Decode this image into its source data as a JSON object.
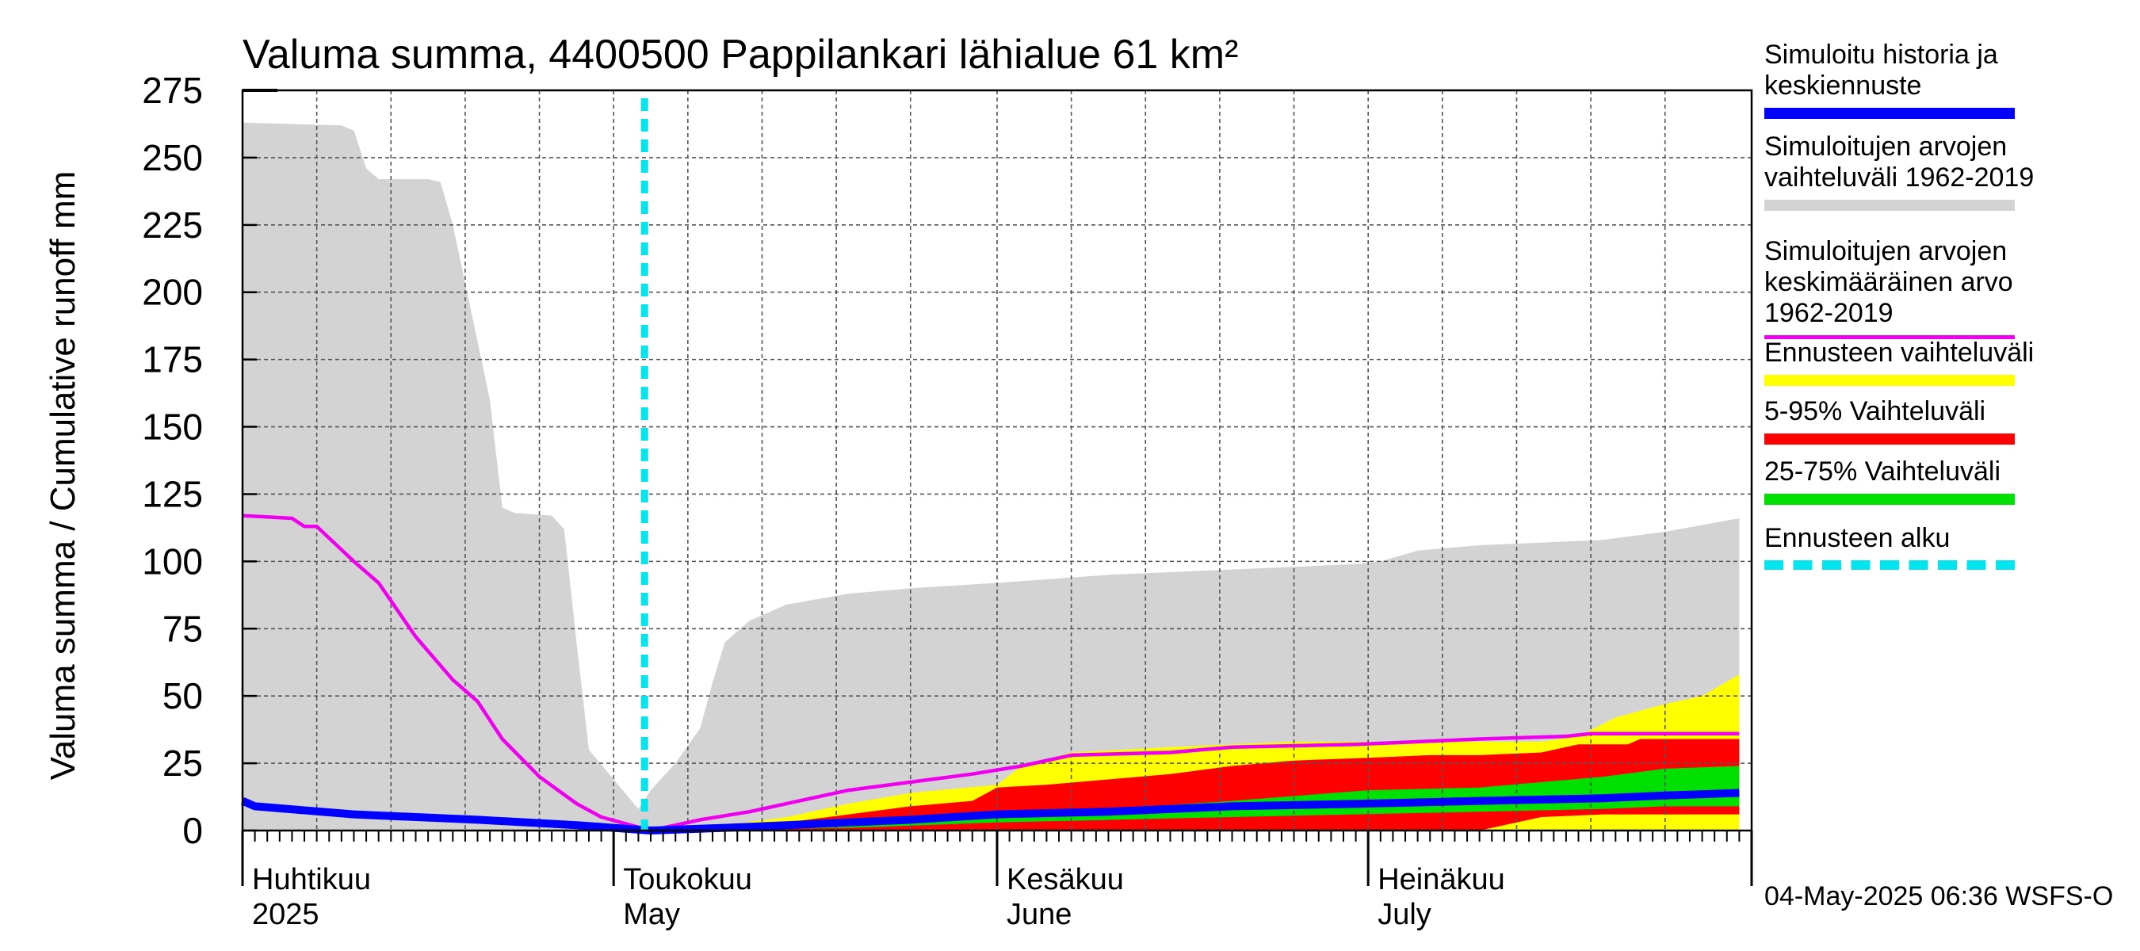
{
  "chart_data": {
    "type": "area",
    "title": "Valuma summa, 4400500 Pappilankari lähialue 61 km²",
    "ylabel": "Valuma summa / Cumulative runoff    mm",
    "ylim": [
      0,
      275
    ],
    "yticks": [
      0,
      25,
      50,
      75,
      100,
      125,
      150,
      175,
      200,
      225,
      250,
      275
    ],
    "xlim": [
      "2025-04-01",
      "2025-07-31"
    ],
    "grid": true,
    "month_labels": [
      {
        "date": "2025-04-01",
        "fi": "Huhtikuu",
        "en": "2025"
      },
      {
        "date": "2025-05-01",
        "fi": "Toukokuu",
        "en": "May"
      },
      {
        "date": "2025-06-01",
        "fi": "Kesäkuu",
        "en": "June"
      },
      {
        "date": "2025-07-01",
        "fi": "Heinäkuu",
        "en": "July"
      }
    ],
    "forecast_start": "2025-05-04",
    "series": [
      {
        "name": "Simuloitujen arvojen vaihteluväli 1962-2019",
        "kind": "band",
        "color": "#d3d3d3",
        "upper": [
          [
            "2025-04-01",
            263
          ],
          [
            "2025-04-09",
            262
          ],
          [
            "2025-04-10",
            260
          ],
          [
            "2025-04-11",
            246
          ],
          [
            "2025-04-12",
            242
          ],
          [
            "2025-04-16",
            242
          ],
          [
            "2025-04-17",
            241
          ],
          [
            "2025-04-18",
            225
          ],
          [
            "2025-04-21",
            160
          ],
          [
            "2025-04-22",
            120
          ],
          [
            "2025-04-23",
            118
          ],
          [
            "2025-04-26",
            117
          ],
          [
            "2025-04-27",
            112
          ],
          [
            "2025-04-28",
            70
          ],
          [
            "2025-04-29",
            30
          ],
          [
            "2025-05-03",
            8
          ],
          [
            "2025-05-04",
            15
          ],
          [
            "2025-05-06",
            25
          ],
          [
            "2025-05-08",
            38
          ],
          [
            "2025-05-09",
            55
          ],
          [
            "2025-05-10",
            70
          ],
          [
            "2025-05-12",
            78
          ],
          [
            "2025-05-15",
            84
          ],
          [
            "2025-05-20",
            88
          ],
          [
            "2025-05-25",
            90
          ],
          [
            "2025-06-01",
            92
          ],
          [
            "2025-06-10",
            95
          ],
          [
            "2025-06-20",
            97
          ],
          [
            "2025-06-30",
            99
          ],
          [
            "2025-07-02",
            100
          ],
          [
            "2025-07-05",
            104
          ],
          [
            "2025-07-10",
            106
          ],
          [
            "2025-07-15",
            107
          ],
          [
            "2025-07-20",
            108
          ],
          [
            "2025-07-25",
            111
          ],
          [
            "2025-07-31",
            116
          ]
        ],
        "lower": [
          [
            "2025-04-01",
            0
          ],
          [
            "2025-07-31",
            0
          ]
        ]
      },
      {
        "name": "Ennusteen vaihteluväli",
        "kind": "band",
        "color": "#ffff00",
        "upper": [
          [
            "2025-05-04",
            0
          ],
          [
            "2025-05-10",
            2
          ],
          [
            "2025-05-15",
            5
          ],
          [
            "2025-05-20",
            10
          ],
          [
            "2025-05-25",
            14
          ],
          [
            "2025-06-01",
            17
          ],
          [
            "2025-06-03",
            24
          ],
          [
            "2025-06-07",
            29
          ],
          [
            "2025-06-15",
            31
          ],
          [
            "2025-06-20",
            32
          ],
          [
            "2025-06-25",
            33
          ],
          [
            "2025-07-01",
            33
          ],
          [
            "2025-07-05",
            33
          ],
          [
            "2025-07-15",
            33
          ],
          [
            "2025-07-18",
            35
          ],
          [
            "2025-07-21",
            42
          ],
          [
            "2025-07-25",
            47
          ],
          [
            "2025-07-28",
            50
          ],
          [
            "2025-07-31",
            58
          ]
        ],
        "lower": [
          [
            "2025-05-04",
            0
          ],
          [
            "2025-07-31",
            0
          ]
        ]
      },
      {
        "name": "5-95% Vaihteluväli",
        "kind": "band",
        "color": "#ff0000",
        "upper": [
          [
            "2025-05-04",
            0
          ],
          [
            "2025-05-12",
            1
          ],
          [
            "2025-05-15",
            3
          ],
          [
            "2025-05-20",
            6
          ],
          [
            "2025-05-25",
            9
          ],
          [
            "2025-05-30",
            11
          ],
          [
            "2025-06-01",
            16
          ],
          [
            "2025-06-05",
            17
          ],
          [
            "2025-06-10",
            19
          ],
          [
            "2025-06-15",
            21
          ],
          [
            "2025-06-20",
            24
          ],
          [
            "2025-06-25",
            26
          ],
          [
            "2025-07-01",
            27
          ],
          [
            "2025-07-06",
            28
          ],
          [
            "2025-07-10",
            28
          ],
          [
            "2025-07-15",
            29
          ],
          [
            "2025-07-18",
            32
          ],
          [
            "2025-07-22",
            32
          ],
          [
            "2025-07-23",
            34
          ],
          [
            "2025-07-31",
            34
          ]
        ],
        "lower": [
          [
            "2025-05-04",
            0
          ],
          [
            "2025-07-10",
            0
          ],
          [
            "2025-07-15",
            5
          ],
          [
            "2025-07-20",
            6
          ],
          [
            "2025-07-31",
            6
          ]
        ]
      },
      {
        "name": "25-75% Vaihteluväli",
        "kind": "band",
        "color": "#00e000",
        "upper": [
          [
            "2025-05-04",
            0
          ],
          [
            "2025-05-15",
            2
          ],
          [
            "2025-05-25",
            4
          ],
          [
            "2025-06-01",
            6
          ],
          [
            "2025-06-10",
            8
          ],
          [
            "2025-06-20",
            11
          ],
          [
            "2025-07-01",
            15
          ],
          [
            "2025-07-10",
            16
          ],
          [
            "2025-07-15",
            18
          ],
          [
            "2025-07-20",
            20
          ],
          [
            "2025-07-25",
            23
          ],
          [
            "2025-07-31",
            24
          ]
        ],
        "lower": [
          [
            "2025-05-04",
            0
          ],
          [
            "2025-05-20",
            1
          ],
          [
            "2025-06-01",
            3
          ],
          [
            "2025-06-20",
            5
          ],
          [
            "2025-07-10",
            7
          ],
          [
            "2025-07-20",
            8
          ],
          [
            "2025-07-25",
            9
          ],
          [
            "2025-07-31",
            9
          ]
        ]
      },
      {
        "name": "Simuloitujen arvojen keskimääräinen arvo 1962-2019",
        "kind": "line",
        "color": "#ee00ee",
        "points": [
          [
            "2025-04-01",
            117
          ],
          [
            "2025-04-05",
            116
          ],
          [
            "2025-04-06",
            113
          ],
          [
            "2025-04-07",
            113
          ],
          [
            "2025-04-10",
            100
          ],
          [
            "2025-04-12",
            92
          ],
          [
            "2025-04-15",
            72
          ],
          [
            "2025-04-18",
            56
          ],
          [
            "2025-04-20",
            48
          ],
          [
            "2025-04-22",
            34
          ],
          [
            "2025-04-25",
            20
          ],
          [
            "2025-04-28",
            10
          ],
          [
            "2025-04-30",
            5
          ],
          [
            "2025-05-04",
            0
          ],
          [
            "2025-05-08",
            4
          ],
          [
            "2025-05-12",
            7
          ],
          [
            "2025-05-16",
            11
          ],
          [
            "2025-05-20",
            15
          ],
          [
            "2025-05-25",
            18
          ],
          [
            "2025-05-30",
            21
          ],
          [
            "2025-06-03",
            24
          ],
          [
            "2025-06-07",
            28
          ],
          [
            "2025-06-15",
            29
          ],
          [
            "2025-06-20",
            31
          ],
          [
            "2025-06-30",
            32
          ],
          [
            "2025-07-05",
            33
          ],
          [
            "2025-07-10",
            34
          ],
          [
            "2025-07-17",
            35
          ],
          [
            "2025-07-19",
            36
          ],
          [
            "2025-07-31",
            36
          ]
        ]
      },
      {
        "name": "Simuloitu historia ja keskiennuste",
        "kind": "line",
        "color": "#0000ff",
        "points": [
          [
            "2025-04-01",
            11
          ],
          [
            "2025-04-02",
            9
          ],
          [
            "2025-04-10",
            6
          ],
          [
            "2025-04-20",
            4
          ],
          [
            "2025-04-28",
            2
          ],
          [
            "2025-05-04",
            0
          ],
          [
            "2025-05-10",
            1
          ],
          [
            "2025-05-15",
            2
          ],
          [
            "2025-05-20",
            3
          ],
          [
            "2025-05-25",
            4
          ],
          [
            "2025-06-01",
            6
          ],
          [
            "2025-06-10",
            7
          ],
          [
            "2025-06-20",
            9
          ],
          [
            "2025-07-01",
            10
          ],
          [
            "2025-07-10",
            11
          ],
          [
            "2025-07-20",
            12
          ],
          [
            "2025-07-25",
            13
          ],
          [
            "2025-07-31",
            14
          ]
        ]
      }
    ]
  },
  "legend": [
    {
      "label": "Simuloitu historia ja\nkeskiennuste",
      "color": "#0000ff",
      "style": "solid"
    },
    {
      "label": "Simuloitujen arvojen\nvaihteluväli 1962-2019",
      "color": "#d3d3d3",
      "style": "solid"
    },
    {
      "label": "Simuloitujen arvojen\nkeskimääräinen arvo\n   1962-2019",
      "color": "#ee00ee",
      "style": "thin"
    },
    {
      "label": "Ennusteen vaihteluväli",
      "color": "#ffff00",
      "style": "solid"
    },
    {
      "label": "5-95% Vaihteluväli",
      "color": "#ff0000",
      "style": "solid"
    },
    {
      "label": "25-75% Vaihteluväli",
      "color": "#00e000",
      "style": "solid"
    },
    {
      "label": "Ennusteen alku",
      "color": "#00e5ee",
      "style": "dashed"
    }
  ],
  "timestamp": "04-May-2025 06:36 WSFS-O"
}
